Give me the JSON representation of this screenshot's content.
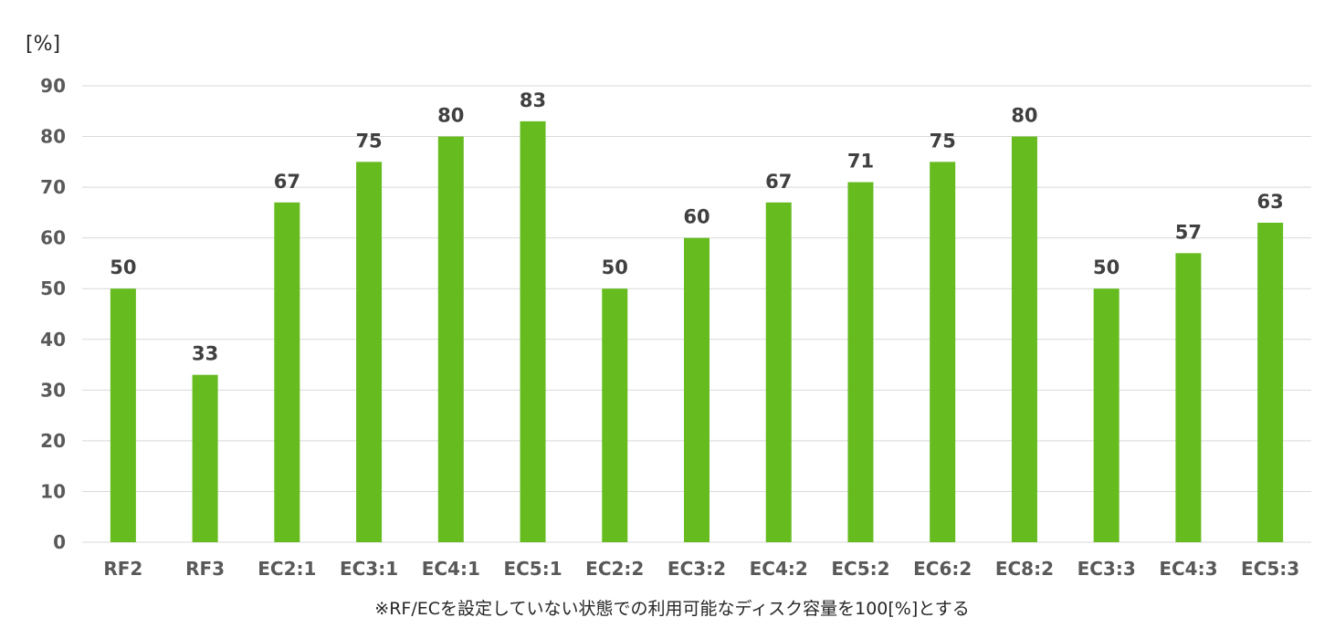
{
  "chart_data": {
    "type": "bar",
    "categories": [
      "RF2",
      "RF3",
      "EC2:1",
      "EC3:1",
      "EC4:1",
      "EC5:1",
      "EC2:2",
      "EC3:2",
      "EC4:2",
      "EC5:2",
      "EC6:2",
      "EC8:2",
      "EC3:3",
      "EC4:3",
      "EC5:3"
    ],
    "values": [
      50,
      33,
      67,
      75,
      80,
      83,
      50,
      60,
      67,
      71,
      75,
      80,
      50,
      57,
      63
    ],
    "ylabel": "[%]",
    "ylim": [
      0,
      90
    ],
    "yticks": [
      0,
      10,
      20,
      30,
      40,
      50,
      60,
      70,
      80,
      90
    ],
    "grid": true,
    "data_labels": true,
    "bar_color": "#66bb1f",
    "grid_color": "#d9d9d9",
    "footnote": "※RF/ECを設定していない状態での利用可能なディスク容量を100[%]とする"
  }
}
